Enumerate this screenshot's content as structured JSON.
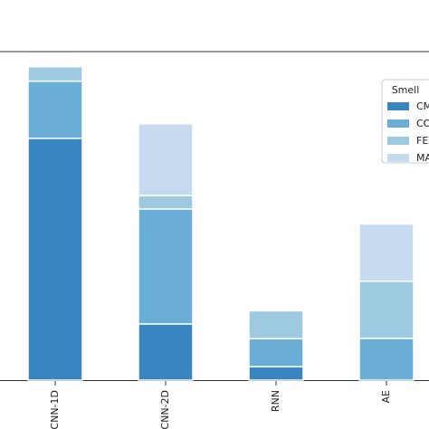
{
  "chart_data": {
    "type": "stacked-bar",
    "categories": [
      "CNN-1D",
      "CNN-2D",
      "RNN",
      "AE"
    ],
    "series": [
      {
        "name": "CM",
        "color": "#3a86c0",
        "values": [
          73.6,
          17.1,
          4.1,
          0
        ]
      },
      {
        "name": "CO",
        "color": "#6aaed6",
        "values": [
          17.4,
          35.0,
          8.5,
          12.7
        ]
      },
      {
        "name": "FE",
        "color": "#9ecae1",
        "values": [
          4.4,
          4.1,
          8.5,
          17.4
        ]
      },
      {
        "name": "MA",
        "color": "#c6dbef",
        "values": [
          0,
          21.8,
          0,
          17.4
        ]
      }
    ],
    "legend_title": "Smell",
    "legend": "upper right",
    "ylim": [
      0,
      100
    ]
  }
}
